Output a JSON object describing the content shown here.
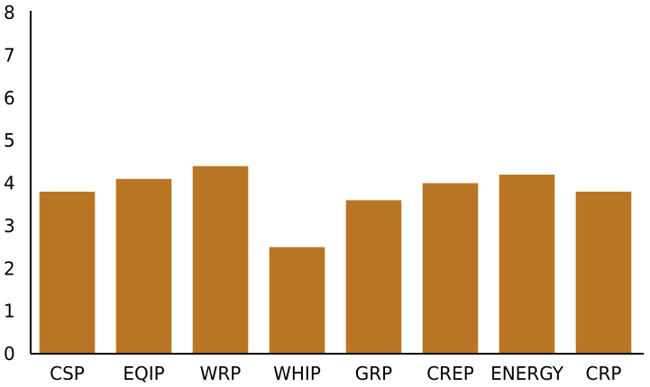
{
  "chart_data": {
    "type": "bar",
    "title": "",
    "xlabel": "",
    "ylabel": "",
    "categories": [
      "CSP",
      "EQIP",
      "WRP",
      "WHIP",
      "GRP",
      "CREP",
      "ENERGY",
      "CRP"
    ],
    "values": [
      3.8,
      4.1,
      4.4,
      2.5,
      3.6,
      4.0,
      4.2,
      3.8
    ],
    "ylim": [
      0,
      8
    ],
    "yticks": [
      "0",
      "1",
      "2",
      "3",
      "4",
      "5",
      "6",
      "7",
      "8"
    ],
    "bar_color": "#b87624",
    "grid": false,
    "legend": "none"
  }
}
